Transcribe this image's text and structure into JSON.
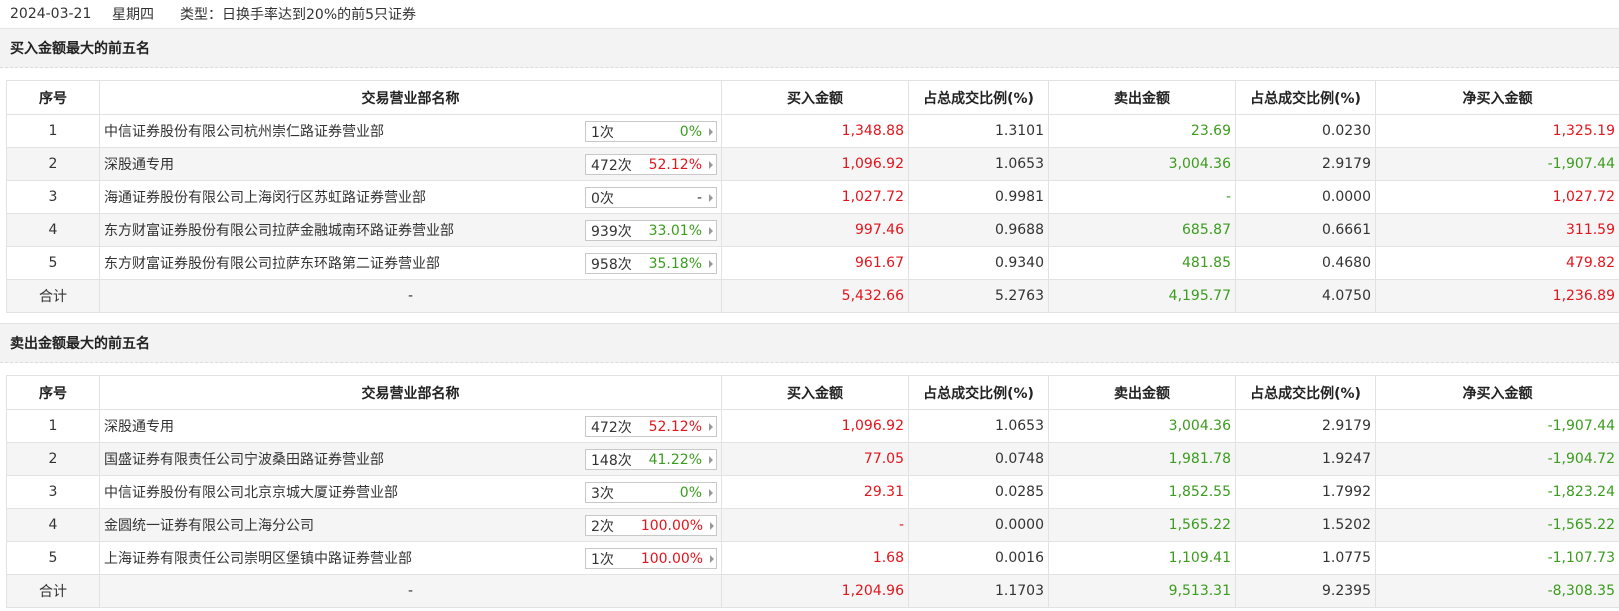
{
  "header": {
    "date": "2024-03-21",
    "weekday": "星期四",
    "type_label": "类型：",
    "type_value": "日换手率达到20%的前5只证券"
  },
  "columns": [
    "序号",
    "交易营业部名称",
    "买入金额",
    "占总成交比例(%)",
    "卖出金额",
    "占总成交比例(%)",
    "净买入金额"
  ],
  "colors": {
    "up": "#e2151d",
    "down": "#3b9c1e"
  },
  "buy_section": {
    "title": "买入金额最大的前五名",
    "rows": [
      {
        "idx": "1",
        "name": "中信证券股份有限公司杭州崇仁路证券营业部",
        "count": "1次",
        "rate": "0%",
        "rate_color": "green",
        "buy": "1,348.88",
        "buy_pct": "1.3101",
        "sell": "23.69",
        "sell_pct": "0.0230",
        "net": "1,325.19",
        "net_color": "red"
      },
      {
        "idx": "2",
        "name": "深股通专用",
        "count": "472次",
        "rate": "52.12%",
        "rate_color": "red",
        "buy": "1,096.92",
        "buy_pct": "1.0653",
        "sell": "3,004.36",
        "sell_pct": "2.9179",
        "net": "-1,907.44",
        "net_color": "green"
      },
      {
        "idx": "3",
        "name": "海通证券股份有限公司上海闵行区苏虹路证券营业部",
        "count": "0次",
        "rate": "-",
        "rate_color": "plain",
        "buy": "1,027.72",
        "buy_pct": "0.9981",
        "sell": "-",
        "sell_pct": "0.0000",
        "net": "1,027.72",
        "net_color": "red"
      },
      {
        "idx": "4",
        "name": "东方财富证券股份有限公司拉萨金融城南环路证券营业部",
        "count": "939次",
        "rate": "33.01%",
        "rate_color": "green",
        "buy": "997.46",
        "buy_pct": "0.9688",
        "sell": "685.87",
        "sell_pct": "0.6661",
        "net": "311.59",
        "net_color": "red"
      },
      {
        "idx": "5",
        "name": "东方财富证券股份有限公司拉萨东环路第二证券营业部",
        "count": "958次",
        "rate": "35.18%",
        "rate_color": "green",
        "buy": "961.67",
        "buy_pct": "0.9340",
        "sell": "481.85",
        "sell_pct": "0.4680",
        "net": "479.82",
        "net_color": "red"
      }
    ],
    "total": {
      "label": "合计",
      "name": "-",
      "buy": "5,432.66",
      "buy_pct": "5.2763",
      "sell": "4,195.77",
      "sell_pct": "4.0750",
      "net": "1,236.89",
      "net_color": "red"
    }
  },
  "sell_section": {
    "title": "卖出金额最大的前五名",
    "rows": [
      {
        "idx": "1",
        "name": "深股通专用",
        "count": "472次",
        "rate": "52.12%",
        "rate_color": "red",
        "buy": "1,096.92",
        "buy_pct": "1.0653",
        "sell": "3,004.36",
        "sell_pct": "2.9179",
        "net": "-1,907.44",
        "net_color": "green"
      },
      {
        "idx": "2",
        "name": "国盛证券有限责任公司宁波桑田路证券营业部",
        "count": "148次",
        "rate": "41.22%",
        "rate_color": "green",
        "buy": "77.05",
        "buy_pct": "0.0748",
        "sell": "1,981.78",
        "sell_pct": "1.9247",
        "net": "-1,904.72",
        "net_color": "green"
      },
      {
        "idx": "3",
        "name": "中信证券股份有限公司北京京城大厦证券营业部",
        "count": "3次",
        "rate": "0%",
        "rate_color": "green",
        "buy": "29.31",
        "buy_pct": "0.0285",
        "sell": "1,852.55",
        "sell_pct": "1.7992",
        "net": "-1,823.24",
        "net_color": "green"
      },
      {
        "idx": "4",
        "name": "金圆统一证券有限公司上海分公司",
        "count": "2次",
        "rate": "100.00%",
        "rate_color": "red",
        "buy": "-",
        "buy_pct": "0.0000",
        "sell": "1,565.22",
        "sell_pct": "1.5202",
        "net": "-1,565.22",
        "net_color": "green"
      },
      {
        "idx": "5",
        "name": "上海证券有限责任公司崇明区堡镇中路证券营业部",
        "count": "1次",
        "rate": "100.00%",
        "rate_color": "red",
        "buy": "1.68",
        "buy_pct": "0.0016",
        "sell": "1,109.41",
        "sell_pct": "1.0775",
        "net": "-1,107.73",
        "net_color": "green"
      }
    ],
    "total": {
      "label": "合计",
      "name": "-",
      "buy": "1,204.96",
      "buy_pct": "1.1703",
      "sell": "9,513.31",
      "sell_pct": "9.2395",
      "net": "-8,308.35",
      "net_color": "green"
    }
  }
}
